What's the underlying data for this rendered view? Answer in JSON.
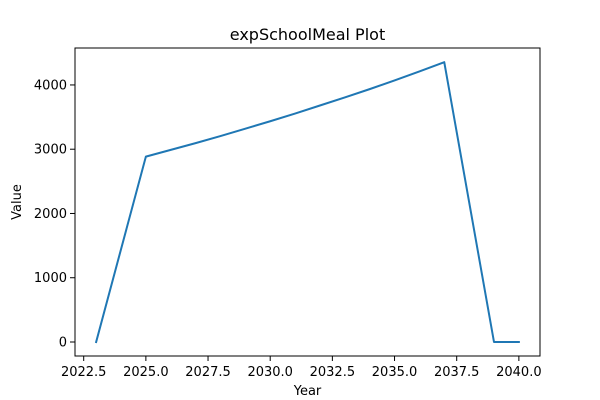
{
  "chart_data": {
    "type": "line",
    "title": "expSchoolMeal Plot",
    "xlabel": "Year",
    "ylabel": "Value",
    "xlim": [
      2022.15,
      2040.85
    ],
    "ylim": [
      -218,
      4575
    ],
    "x_ticks": [
      2022.5,
      2025.0,
      2027.5,
      2030.0,
      2032.5,
      2035.0,
      2037.5,
      2040.0
    ],
    "x_tick_labels": [
      "2022.5",
      "2025.0",
      "2027.5",
      "2030.0",
      "2032.5",
      "2035.0",
      "2037.5",
      "2040.0"
    ],
    "y_ticks": [
      0,
      1000,
      2000,
      3000,
      4000
    ],
    "y_tick_labels": [
      "0",
      "1000",
      "2000",
      "3000",
      "4000"
    ],
    "grid": false,
    "series": [
      {
        "color": "#1f77b4",
        "x": [
          2023,
          2025,
          2026,
          2027,
          2028,
          2029,
          2030,
          2031,
          2032,
          2033,
          2034,
          2035,
          2036,
          2037,
          2039,
          2040
        ],
        "values": [
          0,
          2885,
          2990,
          3095,
          3205,
          3320,
          3435,
          3555,
          3680,
          3805,
          3935,
          4070,
          4210,
          4355,
          0,
          0
        ]
      }
    ]
  }
}
